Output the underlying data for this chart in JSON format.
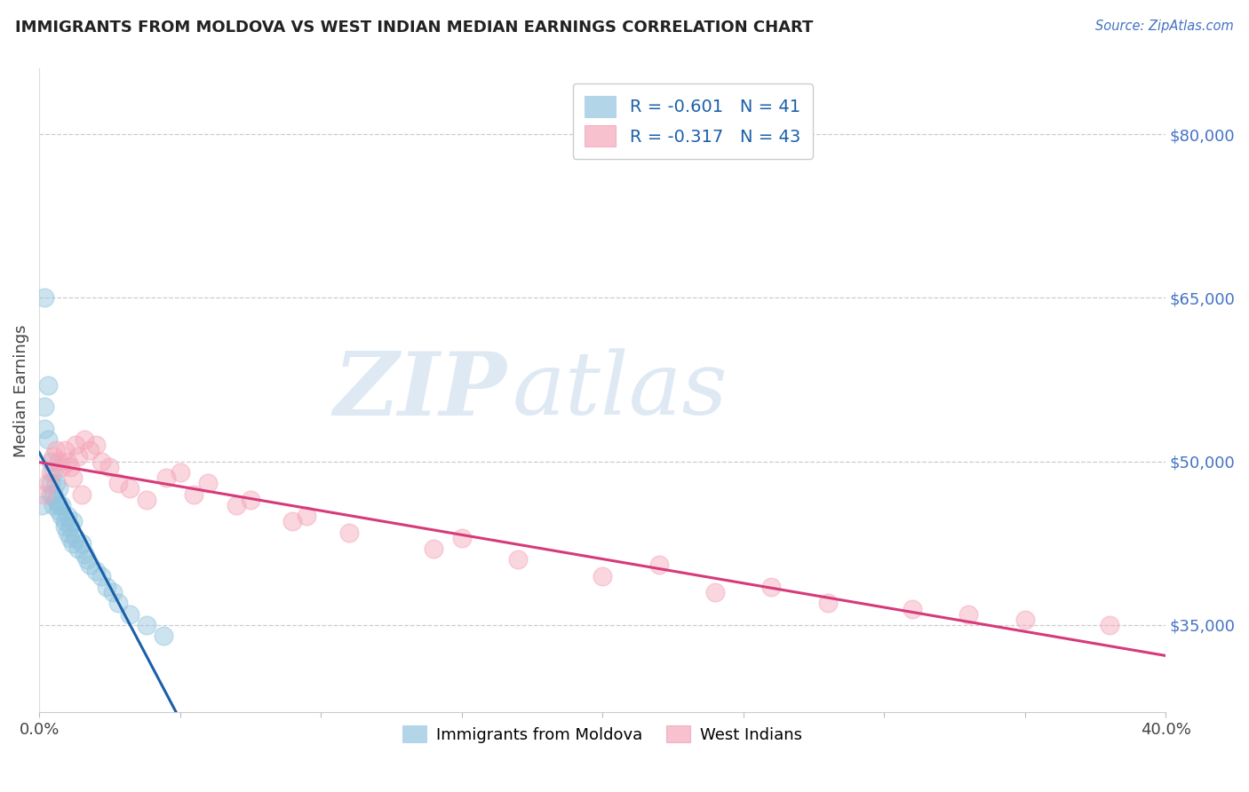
{
  "title": "IMMIGRANTS FROM MOLDOVA VS WEST INDIAN MEDIAN EARNINGS CORRELATION CHART",
  "source": "Source: ZipAtlas.com",
  "ylabel": "Median Earnings",
  "xlim": [
    0.0,
    0.4
  ],
  "ylim": [
    27000,
    86000
  ],
  "ytick_labels_right": [
    "$35,000",
    "$50,000",
    "$65,000",
    "$80,000"
  ],
  "ytick_vals_right": [
    35000,
    50000,
    65000,
    80000
  ],
  "watermark_zip": "ZIP",
  "watermark_atlas": "atlas",
  "legend_r1": "R = -0.601",
  "legend_n1": "N = 41",
  "legend_r2": "R = -0.317",
  "legend_n2": "N = 43",
  "blue_color": "#92c5de",
  "pink_color": "#f4a7b9",
  "blue_line_color": "#1a5fa8",
  "pink_line_color": "#d63a7a",
  "moldova_x": [
    0.001,
    0.002,
    0.002,
    0.003,
    0.003,
    0.004,
    0.004,
    0.004,
    0.005,
    0.005,
    0.005,
    0.006,
    0.006,
    0.007,
    0.007,
    0.007,
    0.008,
    0.008,
    0.009,
    0.009,
    0.01,
    0.01,
    0.011,
    0.011,
    0.012,
    0.012,
    0.013,
    0.014,
    0.015,
    0.016,
    0.017,
    0.018,
    0.02,
    0.022,
    0.024,
    0.026,
    0.028,
    0.032,
    0.038,
    0.044,
    0.002
  ],
  "moldova_y": [
    46000,
    55000,
    53000,
    57000,
    52000,
    50000,
    48000,
    47000,
    49000,
    47000,
    46000,
    48000,
    46500,
    47500,
    46000,
    45500,
    46000,
    45000,
    44500,
    44000,
    45000,
    43500,
    44000,
    43000,
    44500,
    42500,
    43000,
    42000,
    42500,
    41500,
    41000,
    40500,
    40000,
    39500,
    38500,
    38000,
    37000,
    36000,
    35000,
    34000,
    65000
  ],
  "westindian_x": [
    0.002,
    0.003,
    0.004,
    0.005,
    0.006,
    0.007,
    0.008,
    0.009,
    0.01,
    0.011,
    0.012,
    0.013,
    0.014,
    0.016,
    0.018,
    0.02,
    0.022,
    0.025,
    0.028,
    0.032,
    0.038,
    0.045,
    0.055,
    0.07,
    0.09,
    0.11,
    0.14,
    0.17,
    0.2,
    0.24,
    0.28,
    0.31,
    0.35,
    0.38,
    0.05,
    0.06,
    0.075,
    0.095,
    0.15,
    0.22,
    0.26,
    0.33,
    0.015
  ],
  "westindian_y": [
    47000,
    48000,
    49000,
    50500,
    51000,
    50000,
    49500,
    51000,
    50000,
    49500,
    48500,
    51500,
    50500,
    52000,
    51000,
    51500,
    50000,
    49500,
    48000,
    47500,
    46500,
    48500,
    47000,
    46000,
    44500,
    43500,
    42000,
    41000,
    39500,
    38000,
    37000,
    36500,
    35500,
    35000,
    49000,
    48000,
    46500,
    45000,
    43000,
    40500,
    38500,
    36000,
    47000
  ],
  "moldova_R": -0.601,
  "moldova_N": 41,
  "westindian_R": -0.317,
  "westindian_N": 43,
  "grid_color": "#cccccc",
  "bg_color": "#ffffff",
  "title_color": "#222222",
  "source_color": "#4472c4",
  "right_label_color": "#4472c4"
}
